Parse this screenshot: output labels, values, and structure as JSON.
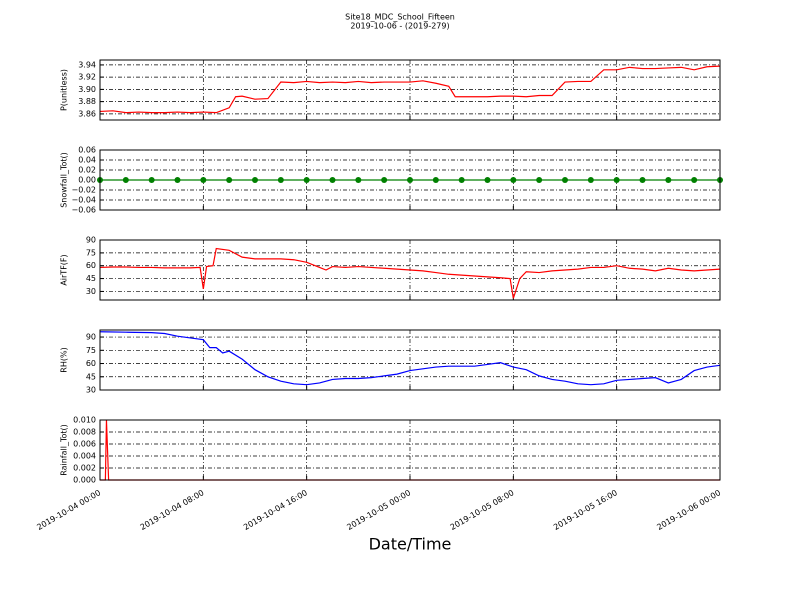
{
  "chart_data": [
    {
      "type": "line",
      "title": "Site18_MDC_School_Fifteen",
      "subtitle": "2019-10-06 - (2019-279)",
      "ylabel": "P(unitless)",
      "color": "#ff0000",
      "grid": true,
      "xlim": [
        "2019-10-04 00:00",
        "2019-10-06 00:00"
      ],
      "xticks": [
        "2019-10-04 00:00",
        "2019-10-04 08:00",
        "2019-10-04 16:00",
        "2019-10-05 00:00",
        "2019-10-05 08:00",
        "2019-10-05 16:00",
        "2019-10-06 00:00"
      ],
      "ylim": [
        3.85,
        3.948
      ],
      "yticks": [
        3.86,
        3.88,
        {
          "value": 3.9,
          "label": "3.90"
        },
        3.92,
        3.94
      ],
      "x": [
        "2019-10-04 00:00",
        "2019-10-04 01:00",
        "2019-10-04 02:00",
        "2019-10-04 03:00",
        "2019-10-04 04:00",
        "2019-10-04 05:00",
        "2019-10-04 06:00",
        "2019-10-04 07:00",
        "2019-10-04 08:00",
        "2019-10-04 09:00",
        "2019-10-04 10:00",
        "2019-10-04 10:30",
        "2019-10-04 11:00",
        "2019-10-04 12:00",
        "2019-10-04 13:00",
        "2019-10-04 14:00",
        "2019-10-04 15:00",
        "2019-10-04 16:00",
        "2019-10-04 17:00",
        "2019-10-04 18:00",
        "2019-10-04 19:00",
        "2019-10-04 20:00",
        "2019-10-04 21:00",
        "2019-10-04 22:00",
        "2019-10-04 23:00",
        "2019-10-05 00:00",
        "2019-10-05 01:00",
        "2019-10-05 02:00",
        "2019-10-05 03:00",
        "2019-10-05 03:30",
        "2019-10-05 04:00",
        "2019-10-05 05:00",
        "2019-10-05 06:00",
        "2019-10-05 07:00",
        "2019-10-05 08:00",
        "2019-10-05 09:00",
        "2019-10-05 10:00",
        "2019-10-05 11:00",
        "2019-10-05 12:00",
        "2019-10-05 13:00",
        "2019-10-05 14:00",
        "2019-10-05 15:00",
        "2019-10-05 16:00",
        "2019-10-05 17:00",
        "2019-10-05 18:00",
        "2019-10-05 19:00",
        "2019-10-05 20:00",
        "2019-10-05 21:00",
        "2019-10-05 22:00",
        "2019-10-05 23:00",
        "2019-10-06 00:00"
      ],
      "values": [
        3.864,
        3.865,
        3.862,
        3.863,
        3.862,
        3.862,
        3.863,
        3.862,
        3.863,
        3.862,
        3.87,
        3.888,
        3.889,
        3.884,
        3.885,
        3.912,
        3.911,
        3.913,
        3.911,
        3.912,
        3.911,
        3.913,
        3.911,
        3.912,
        3.912,
        3.912,
        3.914,
        3.91,
        3.905,
        3.888,
        3.888,
        3.888,
        3.888,
        3.889,
        3.889,
        3.888,
        3.89,
        3.89,
        3.912,
        3.913,
        3.913,
        3.932,
        3.932,
        3.936,
        3.934,
        3.934,
        3.935,
        3.936,
        3.932,
        3.937,
        3.938
      ]
    },
    {
      "type": "line",
      "ylabel": "Snowfall_Tot()",
      "color": "#008000",
      "marker": true,
      "grid": true,
      "xlim": [
        "2019-10-04 00:00",
        "2019-10-06 00:00"
      ],
      "xticks": [
        "2019-10-04 00:00",
        "2019-10-04 08:00",
        "2019-10-04 16:00",
        "2019-10-05 00:00",
        "2019-10-05 08:00",
        "2019-10-05 16:00",
        "2019-10-06 00:00"
      ],
      "ylim": [
        -0.06,
        0.06
      ],
      "yticks": [
        {
          "value": -0.06,
          "label": "−0.06"
        },
        {
          "value": -0.04,
          "label": "−0.04"
        },
        {
          "value": -0.02,
          "label": "−0.02"
        },
        {
          "value": 0,
          "label": "0.00"
        },
        0.02,
        0.04,
        0.06
      ],
      "x": [
        "2019-10-04 00:00",
        "2019-10-04 02:00",
        "2019-10-04 04:00",
        "2019-10-04 06:00",
        "2019-10-04 08:00",
        "2019-10-04 10:00",
        "2019-10-04 12:00",
        "2019-10-04 14:00",
        "2019-10-04 16:00",
        "2019-10-04 18:00",
        "2019-10-04 20:00",
        "2019-10-04 22:00",
        "2019-10-05 00:00",
        "2019-10-05 02:00",
        "2019-10-05 04:00",
        "2019-10-05 06:00",
        "2019-10-05 08:00",
        "2019-10-05 10:00",
        "2019-10-05 12:00",
        "2019-10-05 14:00",
        "2019-10-05 16:00",
        "2019-10-05 18:00",
        "2019-10-05 20:00",
        "2019-10-05 22:00",
        "2019-10-06 00:00"
      ],
      "values": [
        0,
        0,
        0,
        0,
        0,
        0,
        0,
        0,
        0,
        0,
        0,
        0,
        0,
        0,
        0,
        0,
        0,
        0,
        0,
        0,
        0,
        0,
        0,
        0,
        0
      ]
    },
    {
      "type": "line",
      "ylabel": "AirTF(F)",
      "color": "#ff0000",
      "grid": true,
      "xlim": [
        "2019-10-04 00:00",
        "2019-10-06 00:00"
      ],
      "xticks": [
        "2019-10-04 00:00",
        "2019-10-04 08:00",
        "2019-10-04 16:00",
        "2019-10-05 00:00",
        "2019-10-05 08:00",
        "2019-10-05 16:00",
        "2019-10-06 00:00"
      ],
      "ylim": [
        20,
        90
      ],
      "yticks": [
        30,
        45,
        60,
        75,
        90
      ],
      "x": [
        "2019-10-04 00:00",
        "2019-10-04 01:00",
        "2019-10-04 02:00",
        "2019-10-04 03:00",
        "2019-10-04 04:00",
        "2019-10-04 05:00",
        "2019-10-04 06:00",
        "2019-10-04 07:00",
        "2019-10-04 07:45",
        "2019-10-04 08:00",
        "2019-10-04 08:15",
        "2019-10-04 08:45",
        "2019-10-04 09:00",
        "2019-10-04 10:00",
        "2019-10-04 11:00",
        "2019-10-04 12:00",
        "2019-10-04 13:00",
        "2019-10-04 14:00",
        "2019-10-04 15:00",
        "2019-10-04 16:00",
        "2019-10-04 17:00",
        "2019-10-04 17:30",
        "2019-10-04 18:00",
        "2019-10-04 19:00",
        "2019-10-04 20:00",
        "2019-10-04 21:00",
        "2019-10-04 22:00",
        "2019-10-04 23:00",
        "2019-10-05 00:00",
        "2019-10-05 01:00",
        "2019-10-05 02:00",
        "2019-10-05 03:00",
        "2019-10-05 04:00",
        "2019-10-05 05:00",
        "2019-10-05 06:00",
        "2019-10-05 07:00",
        "2019-10-05 07:45",
        "2019-10-05 08:00",
        "2019-10-05 08:30",
        "2019-10-05 09:00",
        "2019-10-05 10:00",
        "2019-10-05 11:00",
        "2019-10-05 12:00",
        "2019-10-05 13:00",
        "2019-10-05 14:00",
        "2019-10-05 15:00",
        "2019-10-05 16:00",
        "2019-10-05 17:00",
        "2019-10-05 18:00",
        "2019-10-05 19:00",
        "2019-10-05 20:00",
        "2019-10-05 21:00",
        "2019-10-05 22:00",
        "2019-10-05 23:00",
        "2019-10-06 00:00"
      ],
      "values": [
        58,
        58.5,
        58.5,
        58,
        58,
        57.5,
        57.5,
        57.5,
        58,
        33,
        59,
        60,
        80,
        78,
        70,
        68,
        68,
        68,
        67,
        64,
        58,
        55,
        59,
        58,
        59,
        58,
        57,
        56,
        55,
        54,
        52,
        50,
        49,
        48,
        47,
        46,
        45,
        22,
        45,
        53,
        52,
        54,
        55,
        56,
        58,
        58,
        60,
        57,
        56,
        54,
        57,
        55,
        54,
        55,
        56
      ]
    },
    {
      "type": "line",
      "ylabel": "RH(%)",
      "color": "#0000ff",
      "grid": true,
      "xlim": [
        "2019-10-04 00:00",
        "2019-10-06 00:00"
      ],
      "xticks": [
        "2019-10-04 00:00",
        "2019-10-04 08:00",
        "2019-10-04 16:00",
        "2019-10-05 00:00",
        "2019-10-05 08:00",
        "2019-10-05 16:00",
        "2019-10-06 00:00"
      ],
      "ylim": [
        30,
        98
      ],
      "yticks": [
        30,
        45,
        60,
        75,
        90
      ],
      "x": [
        "2019-10-04 00:00",
        "2019-10-04 02:00",
        "2019-10-04 04:00",
        "2019-10-04 05:00",
        "2019-10-04 06:00",
        "2019-10-04 07:00",
        "2019-10-04 08:00",
        "2019-10-04 08:30",
        "2019-10-04 09:00",
        "2019-10-04 09:30",
        "2019-10-04 10:00",
        "2019-10-04 11:00",
        "2019-10-04 12:00",
        "2019-10-04 13:00",
        "2019-10-04 14:00",
        "2019-10-04 15:00",
        "2019-10-04 16:00",
        "2019-10-04 17:00",
        "2019-10-04 18:00",
        "2019-10-04 19:00",
        "2019-10-04 20:00",
        "2019-10-04 21:00",
        "2019-10-04 22:00",
        "2019-10-04 23:00",
        "2019-10-05 00:00",
        "2019-10-05 01:00",
        "2019-10-05 02:00",
        "2019-10-05 03:00",
        "2019-10-05 04:00",
        "2019-10-05 05:00",
        "2019-10-05 06:00",
        "2019-10-05 07:00",
        "2019-10-05 08:00",
        "2019-10-05 09:00",
        "2019-10-05 10:00",
        "2019-10-05 11:00",
        "2019-10-05 12:00",
        "2019-10-05 13:00",
        "2019-10-05 14:00",
        "2019-10-05 15:00",
        "2019-10-05 16:00",
        "2019-10-05 17:00",
        "2019-10-05 18:00",
        "2019-10-05 19:00",
        "2019-10-05 20:00",
        "2019-10-05 21:00",
        "2019-10-05 22:00",
        "2019-10-05 23:00",
        "2019-10-06 00:00"
      ],
      "values": [
        96,
        95.5,
        95,
        94,
        91,
        89,
        87,
        78,
        78,
        72,
        74,
        65,
        53,
        45,
        40,
        37,
        36,
        38,
        42,
        43,
        43,
        44,
        46,
        48,
        52,
        54,
        56,
        57,
        57,
        57,
        59,
        61,
        56,
        53,
        46,
        42,
        40,
        37,
        36,
        37,
        41,
        42,
        43,
        44,
        38,
        42,
        52,
        56,
        58
      ]
    },
    {
      "type": "line",
      "ylabel": "Rainfall_Tot()",
      "xlabel": "Date/Time",
      "color": "#ff0000",
      "grid": true,
      "xlim": [
        "2019-10-04 00:00",
        "2019-10-06 00:00"
      ],
      "xticks": [
        "2019-10-04 00:00",
        "2019-10-04 08:00",
        "2019-10-04 16:00",
        "2019-10-05 00:00",
        "2019-10-05 08:00",
        "2019-10-05 16:00",
        "2019-10-06 00:00"
      ],
      "ylim": [
        0,
        0.01
      ],
      "yticks": [
        {
          "value": 0,
          "label": "0.000"
        },
        {
          "value": 0.002,
          "label": "0.002"
        },
        {
          "value": 0.004,
          "label": "0.004"
        },
        {
          "value": 0.006,
          "label": "0.006"
        },
        {
          "value": 0.008,
          "label": "0.008"
        },
        {
          "value": 0.01,
          "label": "0.010"
        }
      ],
      "x": [
        "2019-10-04 00:00",
        "2019-10-04 00:25",
        "2019-10-04 00:30",
        "2019-10-04 00:40",
        "2019-10-06 00:00"
      ],
      "values": [
        0,
        0,
        0.01,
        0,
        0
      ]
    }
  ]
}
